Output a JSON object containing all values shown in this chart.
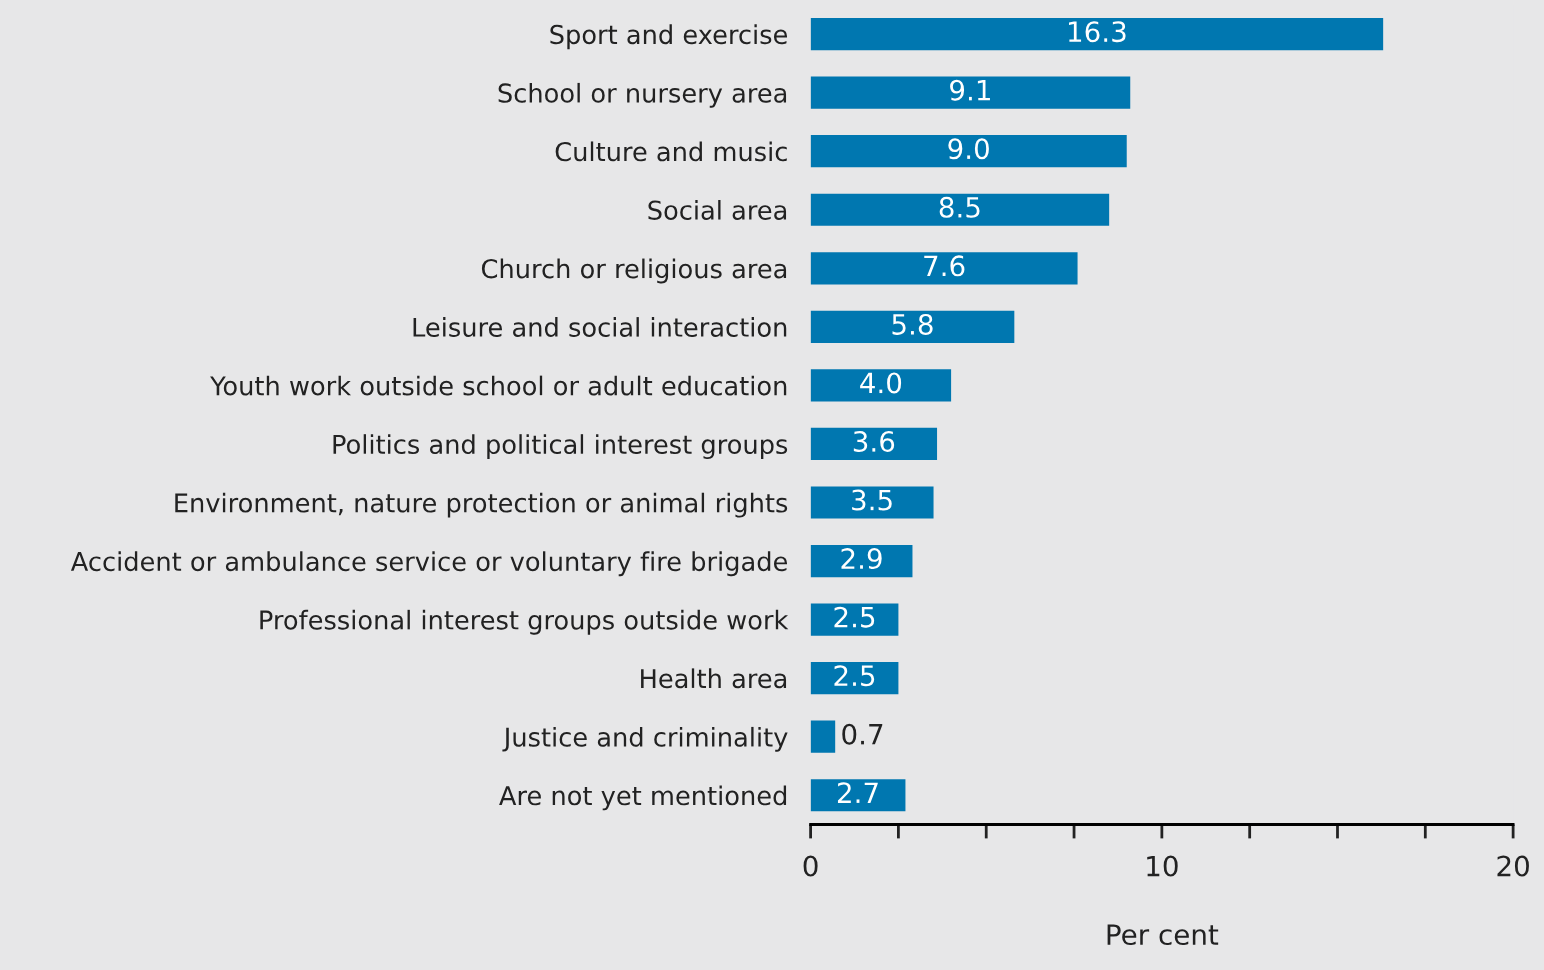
{
  "chart_data": {
    "type": "bar",
    "orientation": "horizontal",
    "xlabel": "Per cent",
    "categories": [
      "Sport and exercise",
      "School or nursery area",
      "Culture and music",
      "Social area",
      "Church or religious area",
      "Leisure and social interaction",
      "Youth work outside school or adult education",
      "Politics and political interest groups",
      "Environment, nature protection or animal rights",
      "Accident or ambulance service or voluntary fire brigade",
      "Professional interest groups outside work",
      "Health area",
      "Justice and criminality",
      "Are not yet mentioned"
    ],
    "values": [
      16.3,
      9.1,
      9.0,
      8.5,
      7.6,
      5.8,
      4.0,
      3.6,
      3.5,
      2.9,
      2.5,
      2.5,
      0.7,
      2.7
    ],
    "value_labels": [
      "16.3",
      "9.1",
      "9.0",
      "8.5",
      "7.6",
      "5.8",
      "4.0",
      "3.6",
      "3.5",
      "2.9",
      "2.5",
      "2.5",
      "0.7",
      "2.7"
    ],
    "color": "#0077b0",
    "xlim": [
      0,
      20
    ],
    "xticks": [
      0,
      {
        "value": 2.5,
        "label": null
      },
      {
        "value": 5,
        "label": null
      },
      {
        "value": 7.5,
        "label": null
      },
      10,
      {
        "value": 12.5,
        "label": null
      },
      {
        "value": 15,
        "label": null
      },
      {
        "value": 17.5,
        "label": null
      },
      20
    ],
    "grid": false,
    "legend": false
  }
}
